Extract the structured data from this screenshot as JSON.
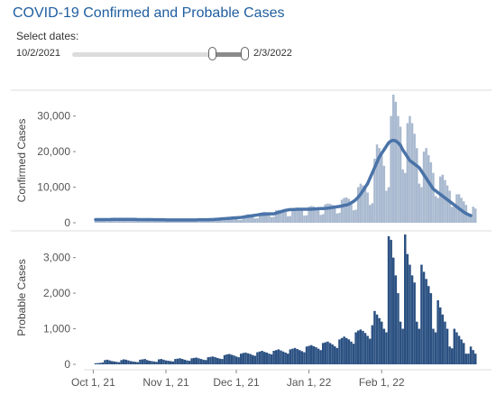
{
  "page": {
    "title": "COVID-19 Confirmed and Probable Cases",
    "select_label": "Select dates:",
    "date_start": "10/2/2021",
    "date_end": "2/3/2022"
  },
  "colors": {
    "confirmed_bar": "#a9b9cf",
    "confirmed_line": "#4a73a8",
    "probable_bar": "#2b5182",
    "title": "#1f5ea0"
  },
  "chart_data": [
    {
      "type": "bar",
      "ylabel": "Confirmed Cases",
      "ylim": [
        0,
        36000
      ],
      "yticks": [
        "0",
        "10,000",
        "20,000",
        "30,000"
      ],
      "x_start": "2021-10-02",
      "values": [
        900,
        1000,
        1100,
        950,
        700,
        400,
        600,
        1300,
        1150,
        1100,
        1050,
        900,
        500,
        600,
        1200,
        1150,
        1100,
        1000,
        900,
        500,
        500,
        1100,
        1100,
        1000,
        1000,
        900,
        500,
        500,
        1000,
        1000,
        950,
        900,
        800,
        400,
        500,
        900,
        950,
        1000,
        900,
        800,
        500,
        500,
        1100,
        1000,
        1100,
        1000,
        900,
        500,
        600,
        1200,
        1300,
        1400,
        1300,
        1200,
        700,
        700,
        1500,
        1600,
        1700,
        1600,
        1400,
        800,
        800,
        2000,
        2200,
        2400,
        2300,
        2100,
        1200,
        1300,
        2800,
        3000,
        3100,
        3000,
        2800,
        1600,
        1700,
        3500,
        3600,
        3600,
        3400,
        3100,
        1800,
        1900,
        4000,
        4100,
        4000,
        3800,
        3500,
        2000,
        2100,
        4500,
        4700,
        4600,
        4300,
        3800,
        2200,
        2400,
        5200,
        5400,
        5300,
        5000,
        4500,
        2600,
        2800,
        6500,
        7000,
        7100,
        6700,
        6000,
        3500,
        3700,
        10000,
        11000,
        10500,
        9500,
        8500,
        5000,
        5500,
        18000,
        22000,
        21000,
        19000,
        16000,
        9000,
        10000,
        30000,
        36000,
        34000,
        30000,
        27000,
        15000,
        14000,
        28000,
        30000,
        28000,
        25000,
        21000,
        11000,
        10000,
        20000,
        21000,
        19000,
        17000,
        14000,
        7500,
        7000,
        13000,
        13500,
        12000,
        10500,
        9000,
        4500,
        4500,
        8000,
        8000,
        7000,
        6000,
        5000,
        2500,
        2500,
        4500,
        4000
      ],
      "line_7day_avg": [
        900,
        900,
        900,
        900,
        900,
        900,
        900,
        950,
        950,
        950,
        950,
        950,
        950,
        950,
        950,
        950,
        950,
        950,
        900,
        900,
        900,
        900,
        900,
        900,
        900,
        850,
        850,
        850,
        850,
        850,
        800,
        800,
        800,
        800,
        800,
        800,
        800,
        800,
        800,
        800,
        800,
        800,
        800,
        800,
        850,
        850,
        850,
        850,
        850,
        900,
        900,
        950,
        1000,
        1050,
        1100,
        1150,
        1200,
        1250,
        1300,
        1350,
        1400,
        1450,
        1500,
        1600,
        1700,
        1800,
        1900,
        2000,
        2100,
        2200,
        2300,
        2350,
        2400,
        2450,
        2500,
        2500,
        2500,
        2700,
        2900,
        3100,
        3300,
        3500,
        3600,
        3700,
        3700,
        3750,
        3800,
        3800,
        3800,
        3800,
        3800,
        3800,
        3800,
        3850,
        3900,
        3950,
        4000,
        4000,
        4050,
        4100,
        4200,
        4300,
        4400,
        4500,
        4600,
        4700,
        4900,
        5000,
        5200,
        5600,
        6000,
        6500,
        7200,
        8000,
        9000,
        10000,
        11000,
        12500,
        14000,
        15500,
        17000,
        18500,
        19500,
        20500,
        21500,
        22500,
        23000,
        23200,
        23000,
        22500,
        21800,
        20500,
        19500,
        18500,
        17500,
        17000,
        16500,
        16000,
        15500,
        14500,
        13500,
        12500,
        11500,
        10500,
        9500,
        9000,
        8500,
        8000,
        7500,
        7000,
        6500,
        6000,
        5500,
        5000,
        4500,
        4000,
        3500,
        3000,
        2600,
        2300,
        2000
      ],
      "legend": "none"
    },
    {
      "type": "bar",
      "ylabel": "Probable Cases",
      "ylim": [
        0,
        3650
      ],
      "yticks": [
        "0",
        "1,000",
        "2,000",
        "3,000"
      ],
      "x_start": "2021-10-02",
      "xticks": [
        "Oct 1, 21",
        "Nov 1, 21",
        "Dec 1, 21",
        "Jan 1, 22",
        "Feb 1, 22"
      ],
      "values": [
        30,
        35,
        40,
        50,
        120,
        130,
        110,
        90,
        80,
        70,
        60,
        120,
        140,
        130,
        110,
        90,
        80,
        70,
        60,
        130,
        140,
        150,
        120,
        100,
        90,
        80,
        70,
        140,
        150,
        130,
        110,
        100,
        90,
        80,
        150,
        160,
        170,
        150,
        130,
        110,
        100,
        170,
        180,
        190,
        170,
        150,
        130,
        120,
        200,
        210,
        220,
        200,
        180,
        160,
        150,
        260,
        280,
        290,
        270,
        250,
        220,
        200,
        300,
        320,
        330,
        310,
        290,
        260,
        240,
        340,
        360,
        380,
        350,
        330,
        300,
        280,
        380,
        400,
        420,
        390,
        360,
        330,
        300,
        420,
        440,
        460,
        430,
        400,
        370,
        340,
        500,
        520,
        540,
        510,
        480,
        440,
        400,
        600,
        620,
        640,
        600,
        560,
        510,
        460,
        700,
        740,
        780,
        740,
        700,
        640,
        580,
        900,
        950,
        980,
        940,
        880,
        800,
        720,
        1100,
        1500,
        1400,
        1300,
        1200,
        1000,
        900,
        3600,
        3500,
        3000,
        2500,
        2000,
        1200,
        1000,
        3650,
        3100,
        2800,
        2500,
        2300,
        1200,
        1000,
        2800,
        2600,
        2400,
        2200,
        2000,
        1000,
        900,
        1800,
        1600,
        1400,
        1200,
        1000,
        500,
        450,
        1000,
        900,
        800,
        700,
        600,
        300,
        300,
        500,
        400,
        300
      ]
    }
  ]
}
